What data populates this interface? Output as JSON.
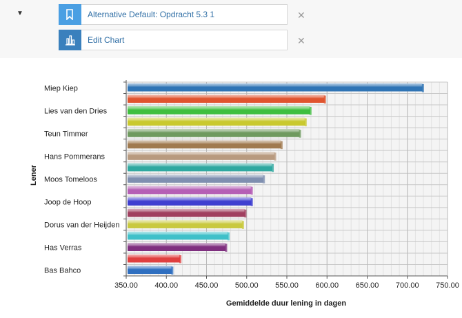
{
  "toolbar": {
    "view_label": "Alternative Default: Opdracht 5.3 1",
    "edit_label": "Edit Chart",
    "close_symbol": "✕",
    "icon_color_view": "#4a9fe3",
    "icon_color_edit": "#3a80bd",
    "icons": {
      "view": "bookmark-icon",
      "edit": "bar-chart-icon",
      "collapse": "triangle-down-icon",
      "close": "close-icon"
    }
  },
  "chart_data": {
    "type": "bar",
    "orientation": "horizontal",
    "title": "",
    "xlabel": "Gemiddelde duur lening in dagen",
    "ylabel": "Lener",
    "xlim": [
      350,
      750
    ],
    "x_ticks": [
      "350.00",
      "400.00",
      "450.00",
      "500.00",
      "550.00",
      "600.00",
      "650.00",
      "700.00",
      "750.00"
    ],
    "grid": true,
    "category_labels_shown": [
      "Miep Kiep",
      "Lies van den Dries",
      "Teun Timmer",
      "Hans Pommerans",
      "Moos Tomeloos",
      "Joop de Hoop",
      "Dorus van der Heijden",
      "Has Verras",
      "Bas Bahco"
    ],
    "values": [
      719,
      597,
      579,
      573,
      566,
      543,
      535,
      532,
      521,
      506,
      506,
      498,
      495,
      477,
      474,
      417,
      407
    ],
    "colors": [
      "#2f74b5",
      "#e0542f",
      "#3fbf3f",
      "#c9c92f",
      "#6f9a5f",
      "#a07a4f",
      "#b89a7f",
      "#2fa8a0",
      "#7f8fb0",
      "#b55fb5",
      "#3f3fd0",
      "#a03f5f",
      "#c9c93f",
      "#3fc0c9",
      "#7f2f7f",
      "#e03f3f",
      "#2f6fc0"
    ]
  }
}
